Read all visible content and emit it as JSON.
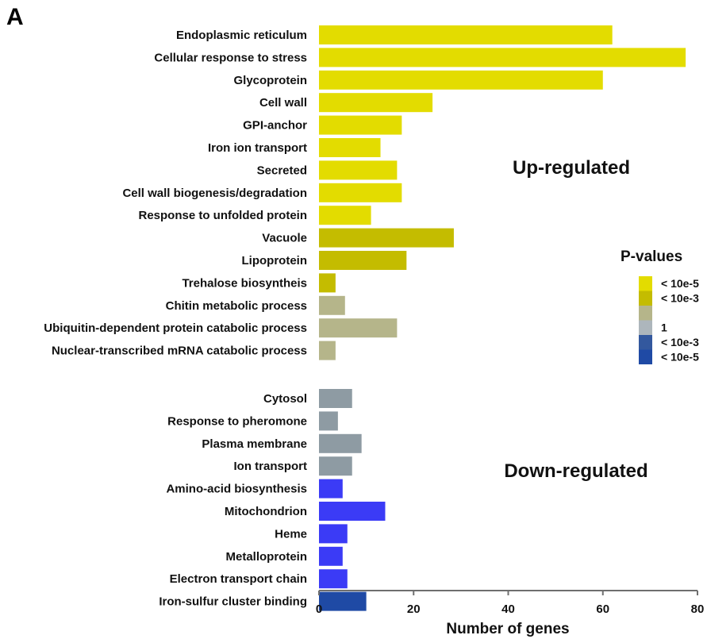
{
  "panel_letter": "A",
  "colors": {
    "pv_lt_10e5_up": "#e3dc00",
    "pv_lt_10e3_up": "#c4bc00",
    "pv_1_up": "#b5b58a",
    "pv_1_down": "#8e9ba3",
    "pv_lt_10e3_down": "#3b3bf6",
    "pv_lt_10e5_down": "#1f4aa5"
  },
  "legend": {
    "title": "P-values",
    "items": [
      {
        "label": "< 10e-5",
        "color": "#e3dc00"
      },
      {
        "label": "< 10e-3",
        "color": "#c4bc00"
      },
      {
        "label": "",
        "color": "#b5b58a"
      },
      {
        "label": "1",
        "color": "#adb6bc"
      },
      {
        "label": "< 10e-3",
        "color": "#33589e"
      },
      {
        "label": "< 10e-5",
        "color": "#1f4aa5"
      }
    ]
  },
  "chart_data": {
    "type": "bar",
    "orientation": "horizontal",
    "xlabel": "Number of genes",
    "xlim": [
      0,
      80
    ],
    "xticks": [
      0,
      20,
      40,
      60,
      80
    ],
    "groups": [
      {
        "name": "Up-regulated",
        "categories": [
          "Endoplasmic reticulum",
          "Cellular response to stress",
          "Glycoprotein",
          "Cell wall",
          "GPI-anchor",
          "Iron ion transport",
          "Secreted",
          "Cell wall biogenesis/degradation",
          "Response to unfolded protein",
          "Vacuole",
          "Lipoprotein",
          "Trehalose biosyntheis",
          "Chitin metabolic process",
          "Ubiquitin-dependent protein catabolic process",
          "Nuclear-transcribed mRNA catabolic process"
        ],
        "values": [
          62,
          77.5,
          60,
          24,
          17.5,
          13,
          16.5,
          17.5,
          11,
          28.5,
          18.5,
          3.5,
          5.5,
          16.5,
          3.5
        ],
        "colors": [
          "#e3dc00",
          "#e3dc00",
          "#e3dc00",
          "#e3dc00",
          "#e3dc00",
          "#e3dc00",
          "#e3dc00",
          "#e3dc00",
          "#e3dc00",
          "#c4bc00",
          "#c4bc00",
          "#c4bc00",
          "#b5b58a",
          "#b5b58a",
          "#b5b58a"
        ]
      },
      {
        "name": "Down-regulated",
        "categories": [
          "Cytosol",
          "Response to pheromone",
          "Plasma membrane",
          "Ion transport",
          "Amino-acid biosynthesis",
          "Mitochondrion",
          "Heme",
          "Metalloprotein",
          "Electron transport chain",
          "Iron-sulfur cluster binding"
        ],
        "values": [
          7,
          4,
          9,
          7,
          5,
          14,
          6,
          5,
          6,
          10
        ],
        "colors": [
          "#8e9ba3",
          "#8e9ba3",
          "#8e9ba3",
          "#8e9ba3",
          "#3b3bf6",
          "#3b3bf6",
          "#3b3bf6",
          "#3b3bf6",
          "#3b3bf6",
          "#1f4aa5"
        ]
      }
    ]
  }
}
